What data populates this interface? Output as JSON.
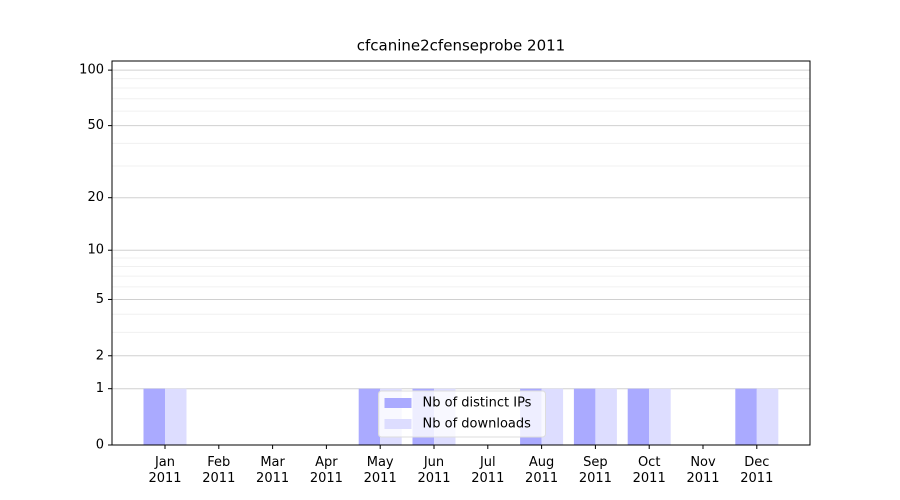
{
  "chart_data": {
    "type": "bar",
    "title": "cfcanine2cfenseprobe 2011",
    "categories": [
      "Jan 2011",
      "Feb 2011",
      "Mar 2011",
      "Apr 2011",
      "May 2011",
      "Jun 2011",
      "Jul 2011",
      "Aug 2011",
      "Sep 2011",
      "Oct 2011",
      "Nov 2011",
      "Dec 2011"
    ],
    "series": [
      {
        "name": "Nb of distinct IPs",
        "color": "#aaaaff",
        "values": [
          1,
          0,
          0,
          0,
          1,
          1,
          0,
          1,
          1,
          1,
          0,
          1
        ]
      },
      {
        "name": "Nb of downloads",
        "color": "#ddddff",
        "values": [
          1,
          0,
          0,
          0,
          1,
          1,
          0,
          1,
          1,
          1,
          0,
          1
        ]
      }
    ],
    "yscale": "log1p",
    "ylim": [
      0,
      112
    ],
    "yticks": [
      0,
      1,
      2,
      5,
      10,
      20,
      50,
      100
    ],
    "minor_yticks": [
      3,
      4,
      6,
      7,
      8,
      9,
      30,
      40,
      60,
      70,
      80,
      90
    ],
    "grid": true,
    "legend": "lower center"
  }
}
